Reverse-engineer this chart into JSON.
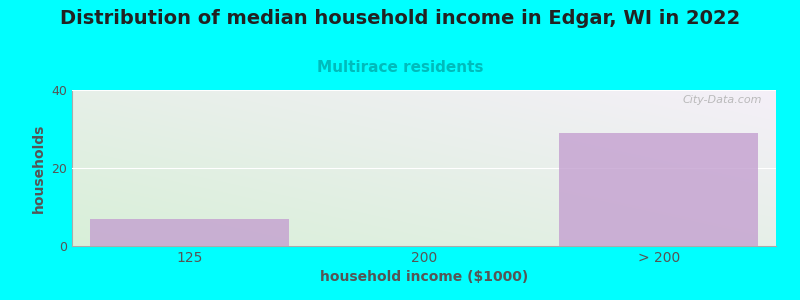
{
  "title": "Distribution of median household income in Edgar, WI in 2022",
  "subtitle": "Multirace residents",
  "xlabel": "household income ($1000)",
  "ylabel": "households",
  "categories": [
    "125",
    "200",
    "> 200"
  ],
  "values": [
    7,
    0,
    29
  ],
  "bar_color": "#c4a0d0",
  "background_color": "#00ffff",
  "ylim": [
    0,
    40
  ],
  "yticks": [
    0,
    20,
    40
  ],
  "title_fontsize": 14,
  "subtitle_fontsize": 11,
  "subtitle_color": "#00bbbb",
  "axis_label_color": "#555555",
  "tick_color": "#555555",
  "bar_alpha": 0.8,
  "watermark": "City-Data.com",
  "gradient_colors": [
    "#d8f0d8",
    "#f5f0f8"
  ],
  "grid_color": "#e0e0e0"
}
